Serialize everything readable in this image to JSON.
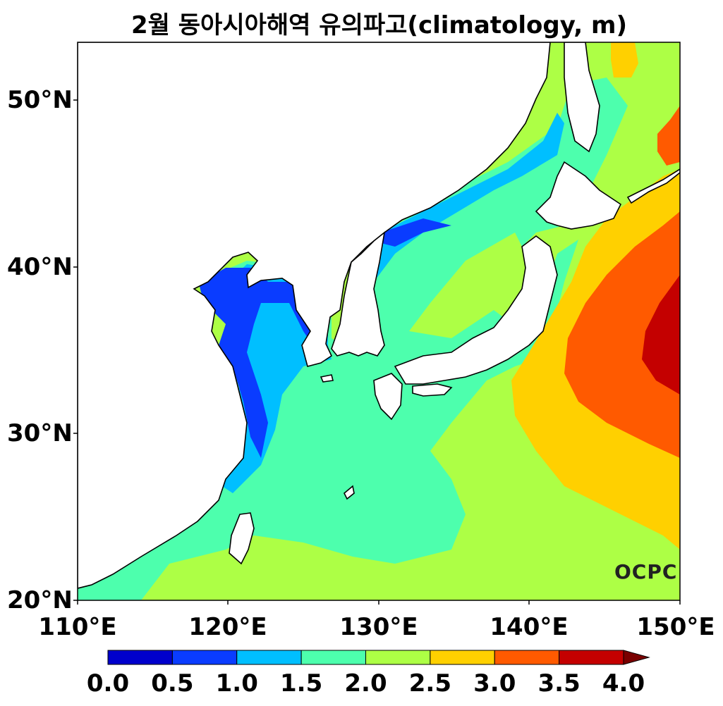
{
  "title": "2월 동아시아해역 유의파고(climatology, m)",
  "lat_labels": [
    "50°N",
    "40°N",
    "30°N",
    "20°N"
  ],
  "lon_labels": [
    "110°E",
    "120°E",
    "130°E",
    "140°E",
    "150°E"
  ],
  "colorbar": {
    "ticks": [
      "0.0",
      "0.5",
      "1.0",
      "1.5",
      "2.0",
      "2.5",
      "3.0",
      "3.5",
      "4.0"
    ],
    "colors": [
      "#0000cc",
      "#0a3cff",
      "#00bfff",
      "#4dffad",
      "#adff45",
      "#ffd000",
      "#ff5a00",
      "#c40000"
    ],
    "extend_color": "#7a0000"
  },
  "logo": "OCPC",
  "map_extent": {
    "lon": [
      110,
      150
    ],
    "lat": [
      20,
      53.5
    ]
  }
}
